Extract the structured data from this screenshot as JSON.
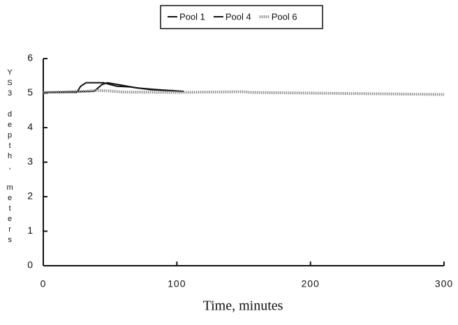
{
  "chart_data": {
    "type": "line",
    "xlabel": "Time, minutes",
    "ylabel": "YS3 depth, meters",
    "xlim": [
      0,
      300
    ],
    "xticks": [
      0,
      100,
      200,
      300
    ],
    "ylim": [
      0,
      6
    ],
    "yticks": [
      0,
      1,
      2,
      3,
      4,
      5,
      6
    ],
    "legend": "top",
    "series": [
      {
        "name": "Pool 1",
        "color": "#111111",
        "style": "solid",
        "x": [
          0,
          25,
          28,
          32,
          45,
          55,
          65,
          80,
          90,
          105
        ],
        "values": [
          5.02,
          5.02,
          5.2,
          5.3,
          5.3,
          5.2,
          5.18,
          5.1,
          5.08,
          5.05
        ]
      },
      {
        "name": "Pool 4",
        "color": "#111111",
        "style": "solid",
        "x": [
          0,
          38,
          44,
          48,
          60,
          70,
          85,
          105
        ],
        "values": [
          5.02,
          5.05,
          5.25,
          5.3,
          5.22,
          5.15,
          5.1,
          5.05
        ]
      },
      {
        "name": "Pool 6",
        "color": "#8a8a8a",
        "style": "dotted",
        "x": [
          0,
          30,
          40,
          50,
          60,
          100,
          150,
          155,
          200,
          250,
          300
        ],
        "values": [
          5.02,
          5.05,
          5.08,
          5.06,
          5.03,
          5.02,
          5.04,
          5.02,
          5.0,
          4.98,
          4.96
        ]
      }
    ]
  }
}
